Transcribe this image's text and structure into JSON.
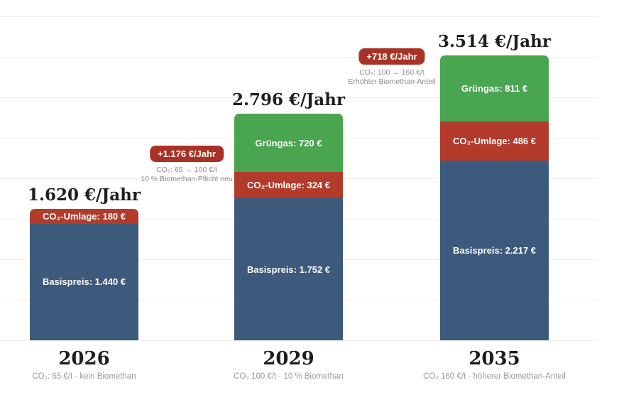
{
  "colors": {
    "background": "#ffffff",
    "basispreis": "#3d5a7d",
    "co2_umlage": "#b23b2c",
    "gruengas": "#4aa551",
    "badge_bg": "#a93226",
    "badge_text": "#ffffff",
    "gridline": "#efefef",
    "title_text": "#1e1e1e",
    "subtitle_text": "#9a9a9a",
    "annotation_text": "#8d8d8d",
    "bar_label_text": "#ffffff"
  },
  "chart_data": {
    "type": "bar",
    "stacked": true,
    "title": "",
    "unit": "€/Jahr",
    "categories": [
      "2026",
      "2029",
      "2035"
    ],
    "category_subtitles": [
      "CO₂: 65 €/t · kein Biomethan",
      "CO₂ 100 €/t · 10 % Biomethan",
      "CO₂ 160 €/t · höherer Biomethan-Anteil"
    ],
    "series": [
      {
        "name": "Basispreis",
        "color": "#3d5a7d",
        "values": [
          1440,
          1752,
          2217
        ]
      },
      {
        "name": "CO₂-Umlage",
        "color": "#b23b2c",
        "values": [
          180,
          324,
          486
        ]
      },
      {
        "name": "Grüngas",
        "color": "#4aa551",
        "values": [
          0,
          720,
          811
        ]
      }
    ],
    "totals": [
      1620,
      2796,
      3514
    ],
    "total_labels": [
      "1.620 €/Jahr",
      "2.796 €/Jahr",
      "3.514 €/Jahr"
    ],
    "ylim": [
      0,
      4000
    ],
    "gridline_step": 500,
    "grid": true,
    "legend_position": "none",
    "annotations": [
      {
        "badge": "+1.176 €/Jahr",
        "lines": [
          "CO₂: 65 → 100 €/t",
          "10 % Biomethan-Pflicht neu"
        ]
      },
      {
        "badge": "+718 €/Jahr",
        "lines": [
          "CO₂: 100 → 160 €/t",
          "Erhöhter Biomethan-Anteil"
        ]
      }
    ]
  },
  "bars": [
    {
      "year": "2026",
      "subtitle": "CO₂: 65 €/t · kein Biomethan",
      "total_label": "1.620 €/Jahr",
      "segments": [
        {
          "name": "CO₂-Umlage",
          "label": "CO₂-Umlage: 180 €",
          "value": 180,
          "color": "co2_umlage"
        },
        {
          "name": "Basispreis",
          "label": "Basispreis: 1.440 €",
          "value": 1440,
          "color": "basispreis"
        }
      ]
    },
    {
      "year": "2029",
      "subtitle": "CO₂ 100 €/t · 10 % Biomethan",
      "total_label": "2.796 €/Jahr",
      "segments": [
        {
          "name": "Grüngas",
          "label": "Grüngas: 720 €",
          "value": 720,
          "color": "gruengas"
        },
        {
          "name": "CO₂-Umlage",
          "label": "CO₂-Umlage: 324 €",
          "value": 324,
          "color": "co2_umlage"
        },
        {
          "name": "Basispreis",
          "label": "Basispreis: 1.752 €",
          "value": 1752,
          "color": "basispreis"
        }
      ]
    },
    {
      "year": "2035",
      "subtitle": "CO₂ 160 €/t · höherer Biomethan-Anteil",
      "total_label": "3.514 €/Jahr",
      "segments": [
        {
          "name": "Grüngas",
          "label": "Grüngas: 811 €",
          "value": 811,
          "color": "gruengas"
        },
        {
          "name": "CO₂-Umlage",
          "label": "CO₂-Umlage: 486 €",
          "value": 486,
          "color": "co2_umlage"
        },
        {
          "name": "Basispreis",
          "label": "Basispreis: 2.217 €",
          "value": 2217,
          "color": "basispreis"
        }
      ]
    }
  ],
  "annotations": [
    {
      "badge": "+1.176 €/Jahr",
      "line1": "CO₂: 65 → 100 €/t",
      "line2": "10 % Biomethan-Pflicht neu"
    },
    {
      "badge": "+718 €/Jahr",
      "line1": "CO₂: 100 → 160 €/t",
      "line2": "Erhöhter Biomethan-Anteil"
    }
  ]
}
